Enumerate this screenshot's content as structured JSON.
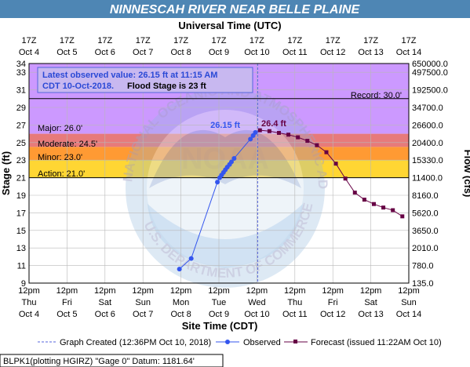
{
  "title": "NINNESCAH RIVER NEAR BELLE PLAINE",
  "utc_axis_title": "Universal Time (UTC)",
  "site_axis_title": "Site Time (CDT)",
  "y_left_title": "Stage (ft)",
  "y_right_title": "Flow (cfs)",
  "info_box": {
    "line1": "Latest observed value: 26.15 ft at 11:15 AM",
    "line2_a": "CDT 10-Oct-2018.",
    "line2_b": "Flood Stage is 23 ft"
  },
  "flood_labels": {
    "record": "Record: 30.0'",
    "major": "Major: 26.0'",
    "moderate": "Moderate: 24.5'",
    "minor": "Minor: 23.0'",
    "action": "Action: 21.0'"
  },
  "annotations": {
    "observed_peak": "26.15 ft",
    "forecast_peak": "26.4 ft"
  },
  "legend": {
    "created": "Graph Created (12:36PM Oct 10, 2018)",
    "observed": "Observed",
    "forecast": "Forecast (issued 11:22AM Oct 10)"
  },
  "footer": "BLPK1(plotting HGIRZ) \"Gage 0\" Datum: 1181.64'",
  "watermark": "NOAA",
  "watermark_text": "NATIONAL OCEANIC AND ATMOSPHERIC ADMINISTRATION · U.S. DEPARTMENT OF COMMERCE",
  "colors": {
    "record_zone": "#cc99ff",
    "major_zone": "#e77a7a",
    "moderate_zone": "#ff9a33",
    "minor_zone": "#ffd633",
    "action_zone": "#ffff66",
    "observed": "#3355ee",
    "forecast": "#660044",
    "created_line": "#5566dd",
    "title_bg": "#4e86b4"
  },
  "chart_data": {
    "type": "line",
    "title": "NINNESCAH RIVER NEAR BELLE PLAINE",
    "xlabel": "Site Time (CDT)",
    "ylabel": "Stage (ft)",
    "y2label": "Flow (cfs)",
    "ylim": [
      9,
      34
    ],
    "x_units": "days since 12pm CDT Oct 4 2018",
    "xlim": [
      0,
      10
    ],
    "grid": true,
    "top_ticks": [
      {
        "line1": "17Z",
        "line2": "Oct 4"
      },
      {
        "line1": "17Z",
        "line2": "Oct 5"
      },
      {
        "line1": "17Z",
        "line2": "Oct 6"
      },
      {
        "line1": "17Z",
        "line2": "Oct 7"
      },
      {
        "line1": "17Z",
        "line2": "Oct 8"
      },
      {
        "line1": "17Z",
        "line2": "Oct 9"
      },
      {
        "line1": "17Z",
        "line2": "Oct 10"
      },
      {
        "line1": "17Z",
        "line2": "Oct 11"
      },
      {
        "line1": "17Z",
        "line2": "Oct 12"
      },
      {
        "line1": "17Z",
        "line2": "Oct 13"
      },
      {
        "line1": "17Z",
        "line2": "Oct 14"
      }
    ],
    "bottom_ticks": [
      {
        "time": "12pm",
        "day": "Thu",
        "date": "Oct 4"
      },
      {
        "time": "12pm",
        "day": "Fri",
        "date": "Oct 5"
      },
      {
        "time": "12pm",
        "day": "Sat",
        "date": "Oct 6"
      },
      {
        "time": "12pm",
        "day": "Sun",
        "date": "Oct 7"
      },
      {
        "time": "12pm",
        "day": "Mon",
        "date": "Oct 8"
      },
      {
        "time": "12pm",
        "day": "Tue",
        "date": "Oct 9"
      },
      {
        "time": "12pm",
        "day": "Wed",
        "date": "Oct 10"
      },
      {
        "time": "12pm",
        "day": "Thu",
        "date": "Oct 11"
      },
      {
        "time": "12pm",
        "day": "Fri",
        "date": "Oct 12"
      },
      {
        "time": "12pm",
        "day": "Sat",
        "date": "Oct 13"
      },
      {
        "time": "12pm",
        "day": "Sun",
        "date": "Oct 14"
      }
    ],
    "y_ticks": [
      9,
      11,
      13,
      15,
      17,
      19,
      21,
      23,
      25,
      27,
      29,
      31,
      33,
      34
    ],
    "y2_ticks": [
      {
        "stage": 9,
        "label": "135.0"
      },
      {
        "stage": 11,
        "label": "780.0"
      },
      {
        "stage": 13,
        "label": "2010.0"
      },
      {
        "stage": 15,
        "label": "3650.0"
      },
      {
        "stage": 17,
        "label": "5620.0"
      },
      {
        "stage": 19,
        "label": "8160.0"
      },
      {
        "stage": 21,
        "label": "11400.0"
      },
      {
        "stage": 23,
        "label": "15330.0"
      },
      {
        "stage": 25,
        "label": "20400.0"
      },
      {
        "stage": 27,
        "label": "26600.0"
      },
      {
        "stage": 29,
        "label": "34700.0"
      },
      {
        "stage": 31,
        "label": "192500.0"
      },
      {
        "stage": 33,
        "label": "497500.0"
      },
      {
        "stage": 34,
        "label": "650000.0"
      }
    ],
    "flood_stages": {
      "record": 30.0,
      "major": 26.0,
      "moderate": 24.5,
      "minor": 23.0,
      "action": 21.0
    },
    "graph_created_x": 6.02,
    "series": [
      {
        "name": "Observed",
        "x": [
          3.96,
          4.27,
          4.96,
          5.02,
          5.07,
          5.12,
          5.17,
          5.22,
          5.28,
          5.33,
          5.4,
          5.83,
          5.9,
          5.96
        ],
        "y": [
          10.6,
          11.8,
          20.5,
          21.0,
          21.3,
          21.6,
          21.9,
          22.2,
          22.5,
          22.8,
          23.2,
          25.4,
          25.8,
          26.15
        ]
      },
      {
        "name": "Forecast (issued 11:22AM Oct 10)",
        "x": [
          6.08,
          6.33,
          6.58,
          6.83,
          7.08,
          7.33,
          7.58,
          7.83,
          8.08,
          8.33,
          8.58,
          8.83,
          9.08,
          9.33,
          9.58,
          9.83
        ],
        "y": [
          26.4,
          26.3,
          26.1,
          25.9,
          25.6,
          25.2,
          24.7,
          23.9,
          22.6,
          20.9,
          19.3,
          18.5,
          18.0,
          17.6,
          17.3,
          16.6
        ]
      }
    ]
  }
}
